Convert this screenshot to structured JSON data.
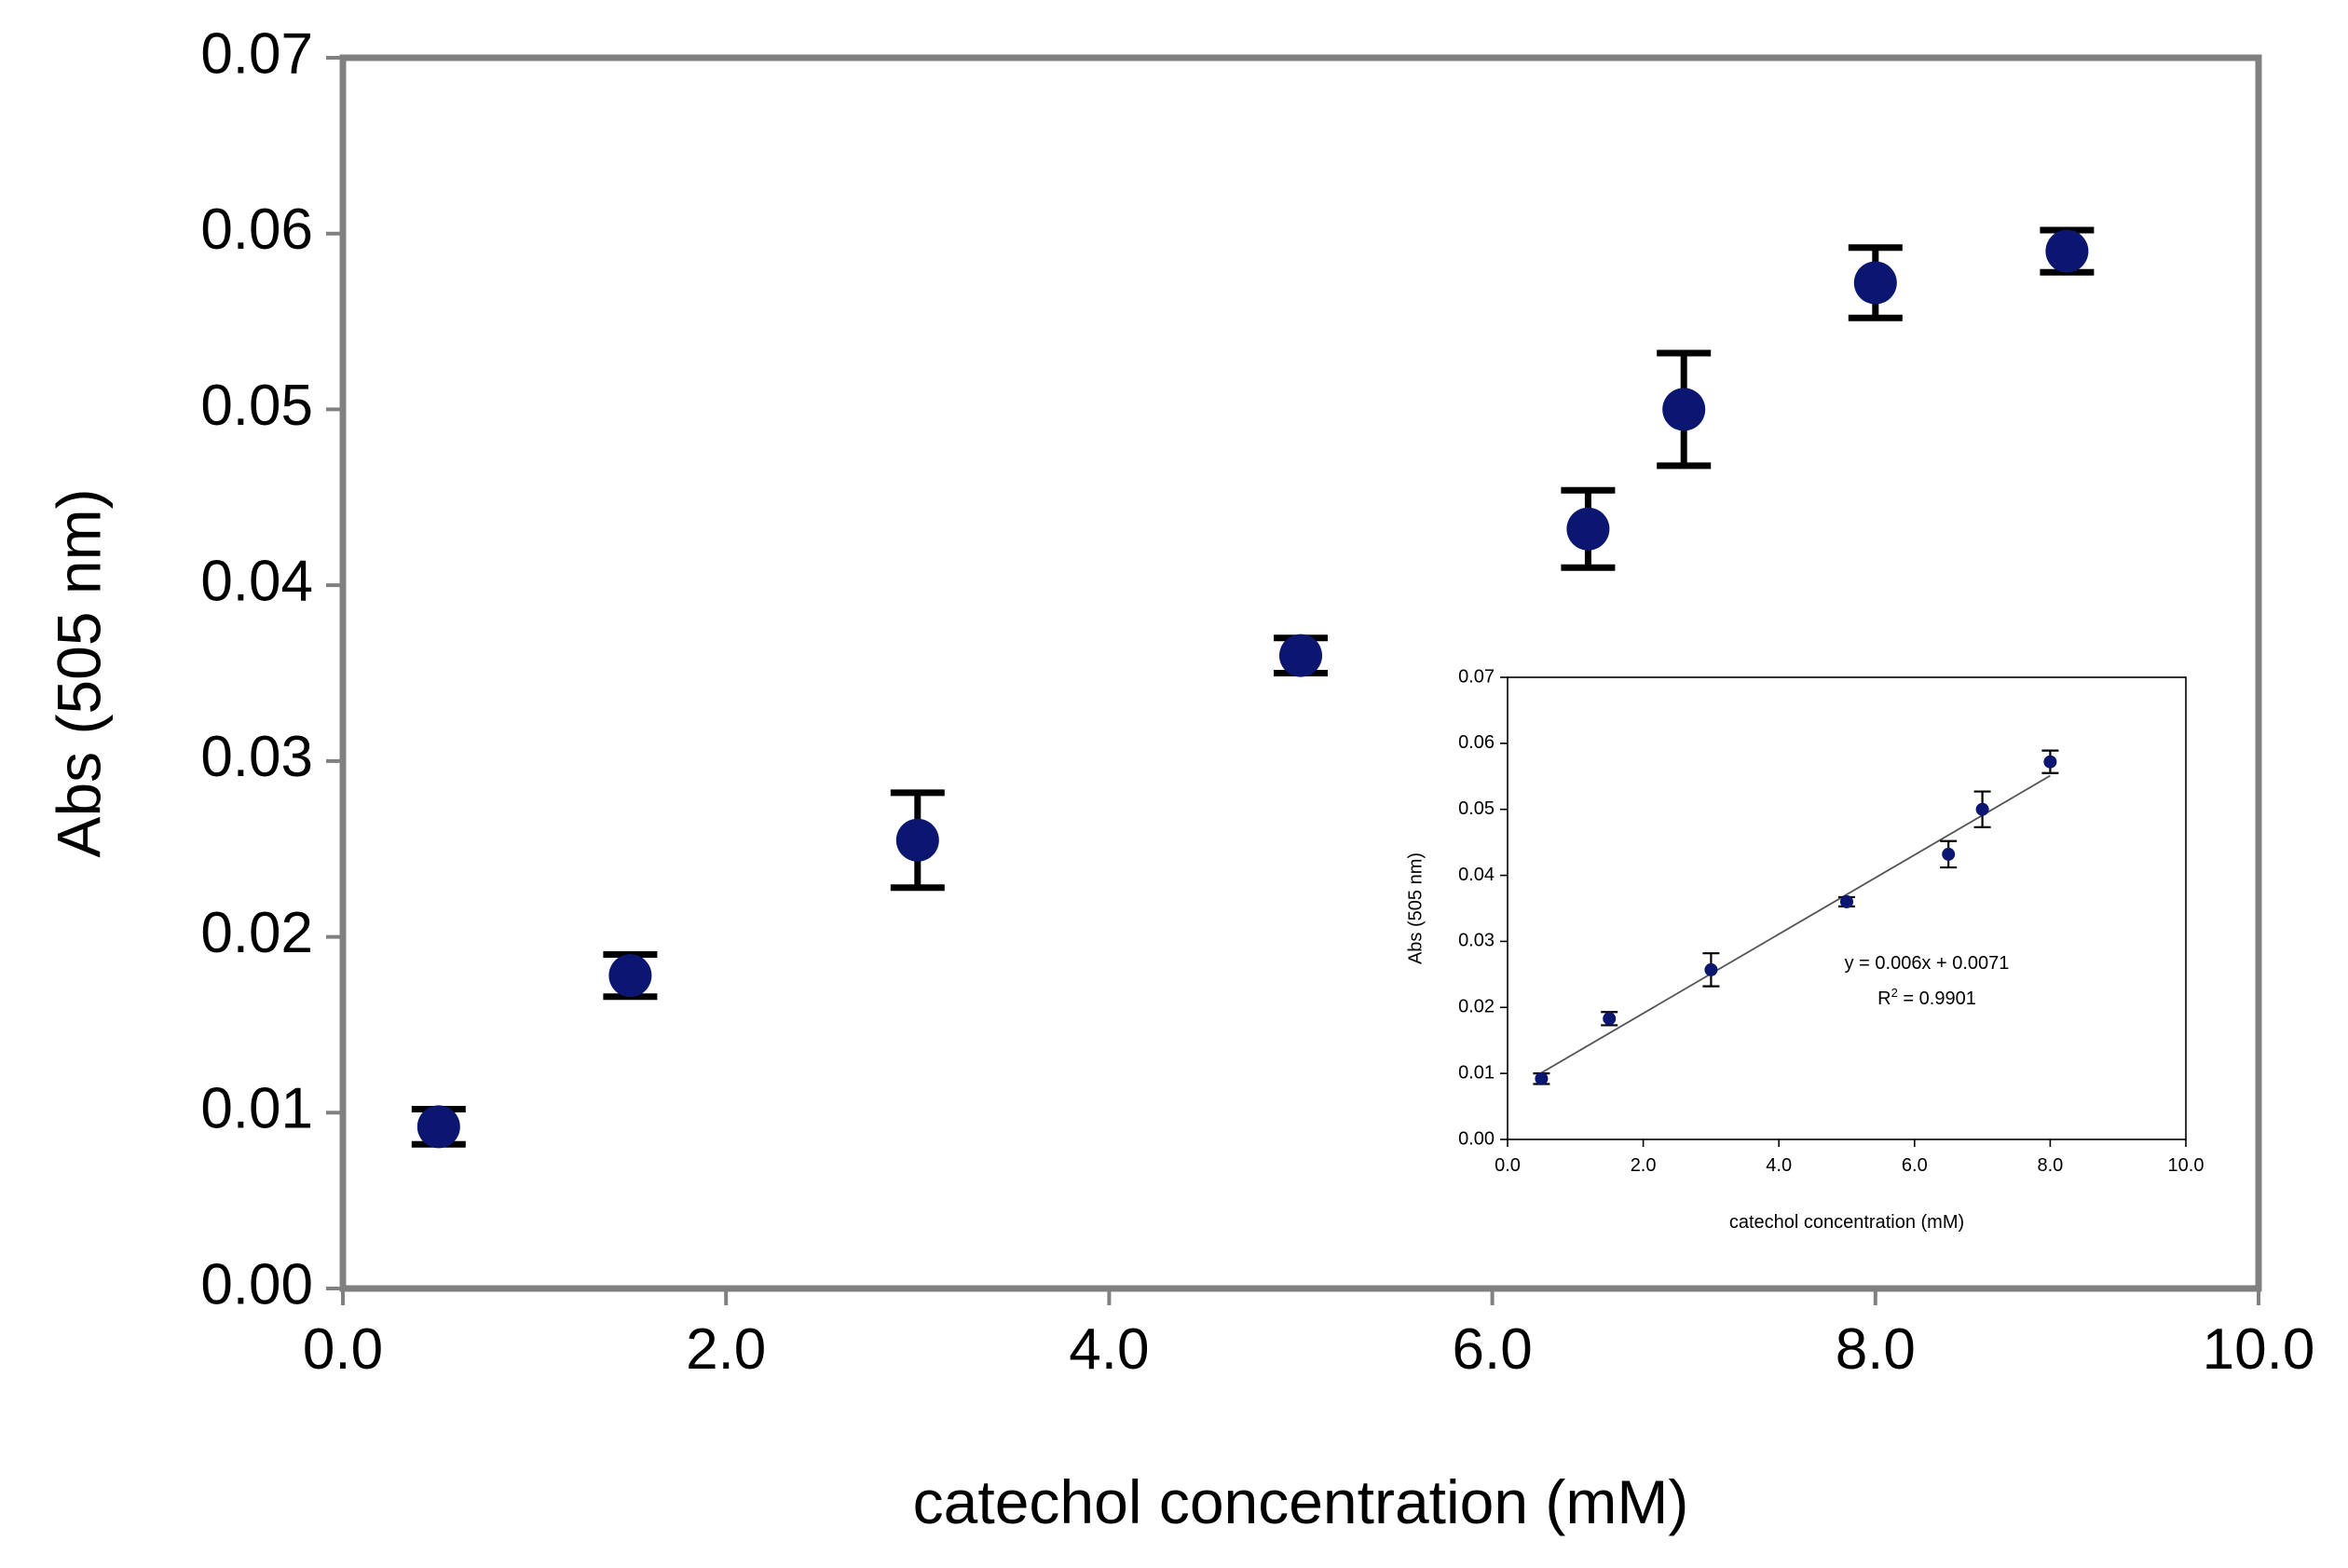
{
  "colors": {
    "marker": "#0b1670",
    "errorbar": "#000000",
    "axis_main": "#808080",
    "axis_inset": "#000000",
    "text": "#000000",
    "fit_line": "#555555"
  },
  "chart_data": [
    {
      "id": "main",
      "type": "scatter",
      "title": "",
      "xlabel": "catechol concentration (mM)",
      "ylabel": "Abs (505 nm)",
      "xlim": [
        0,
        10
      ],
      "ylim": [
        0,
        0.07
      ],
      "xticks": [
        0,
        2,
        4,
        6,
        8,
        10
      ],
      "xtick_labels": [
        "0.0",
        "2.0",
        "4.0",
        "6.0",
        "8.0",
        "10.0"
      ],
      "yticks": [
        0,
        0.01,
        0.02,
        0.03,
        0.04,
        0.05,
        0.06,
        0.07
      ],
      "ytick_labels": [
        "0.00",
        "0.01",
        "0.02",
        "0.03",
        "0.04",
        "0.05",
        "0.06",
        "0.07"
      ],
      "grid": false,
      "series": [
        {
          "name": "Abs",
          "x": [
            0.5,
            1.5,
            3.0,
            5.0,
            6.5,
            7.0,
            8.0,
            9.0
          ],
          "y": [
            0.0092,
            0.0178,
            0.0255,
            0.036,
            0.0432,
            0.05,
            0.0572,
            0.059
          ],
          "error": [
            0.001,
            0.0012,
            0.0027,
            0.001,
            0.0022,
            0.0032,
            0.002,
            0.0012
          ]
        }
      ]
    },
    {
      "id": "inset",
      "type": "scatter",
      "title": "",
      "xlabel": "catechol concentration (mM)",
      "ylabel": "Abs (505 nm)",
      "xlim": [
        0,
        10
      ],
      "ylim": [
        0,
        0.07
      ],
      "xticks": [
        0,
        2,
        4,
        6,
        8,
        10
      ],
      "xtick_labels": [
        "0.0",
        "2.0",
        "4.0",
        "6.0",
        "8.0",
        "10.0"
      ],
      "yticks": [
        0,
        0.01,
        0.02,
        0.03,
        0.04,
        0.05,
        0.06,
        0.07
      ],
      "ytick_labels": [
        "0.00",
        "0.01",
        "0.02",
        "0.03",
        "0.04",
        "0.05",
        "0.06",
        "0.07"
      ],
      "grid": false,
      "series": [
        {
          "name": "Abs",
          "x": [
            0.5,
            1.5,
            3.0,
            5.0,
            6.5,
            7.0,
            8.0
          ],
          "y": [
            0.0092,
            0.0183,
            0.0257,
            0.036,
            0.0432,
            0.05,
            0.0572
          ],
          "error": [
            0.0008,
            0.001,
            0.0025,
            0.0007,
            0.002,
            0.0027,
            0.0017
          ]
        }
      ],
      "trendline": {
        "slope": 0.006,
        "intercept": 0.0071,
        "x_range": [
          0.5,
          8.0
        ],
        "equation": "y = 0.006x + 0.0071",
        "r2_label": "R",
        "r2_sup": "2",
        "r2_value": " = 0.9901"
      }
    }
  ]
}
